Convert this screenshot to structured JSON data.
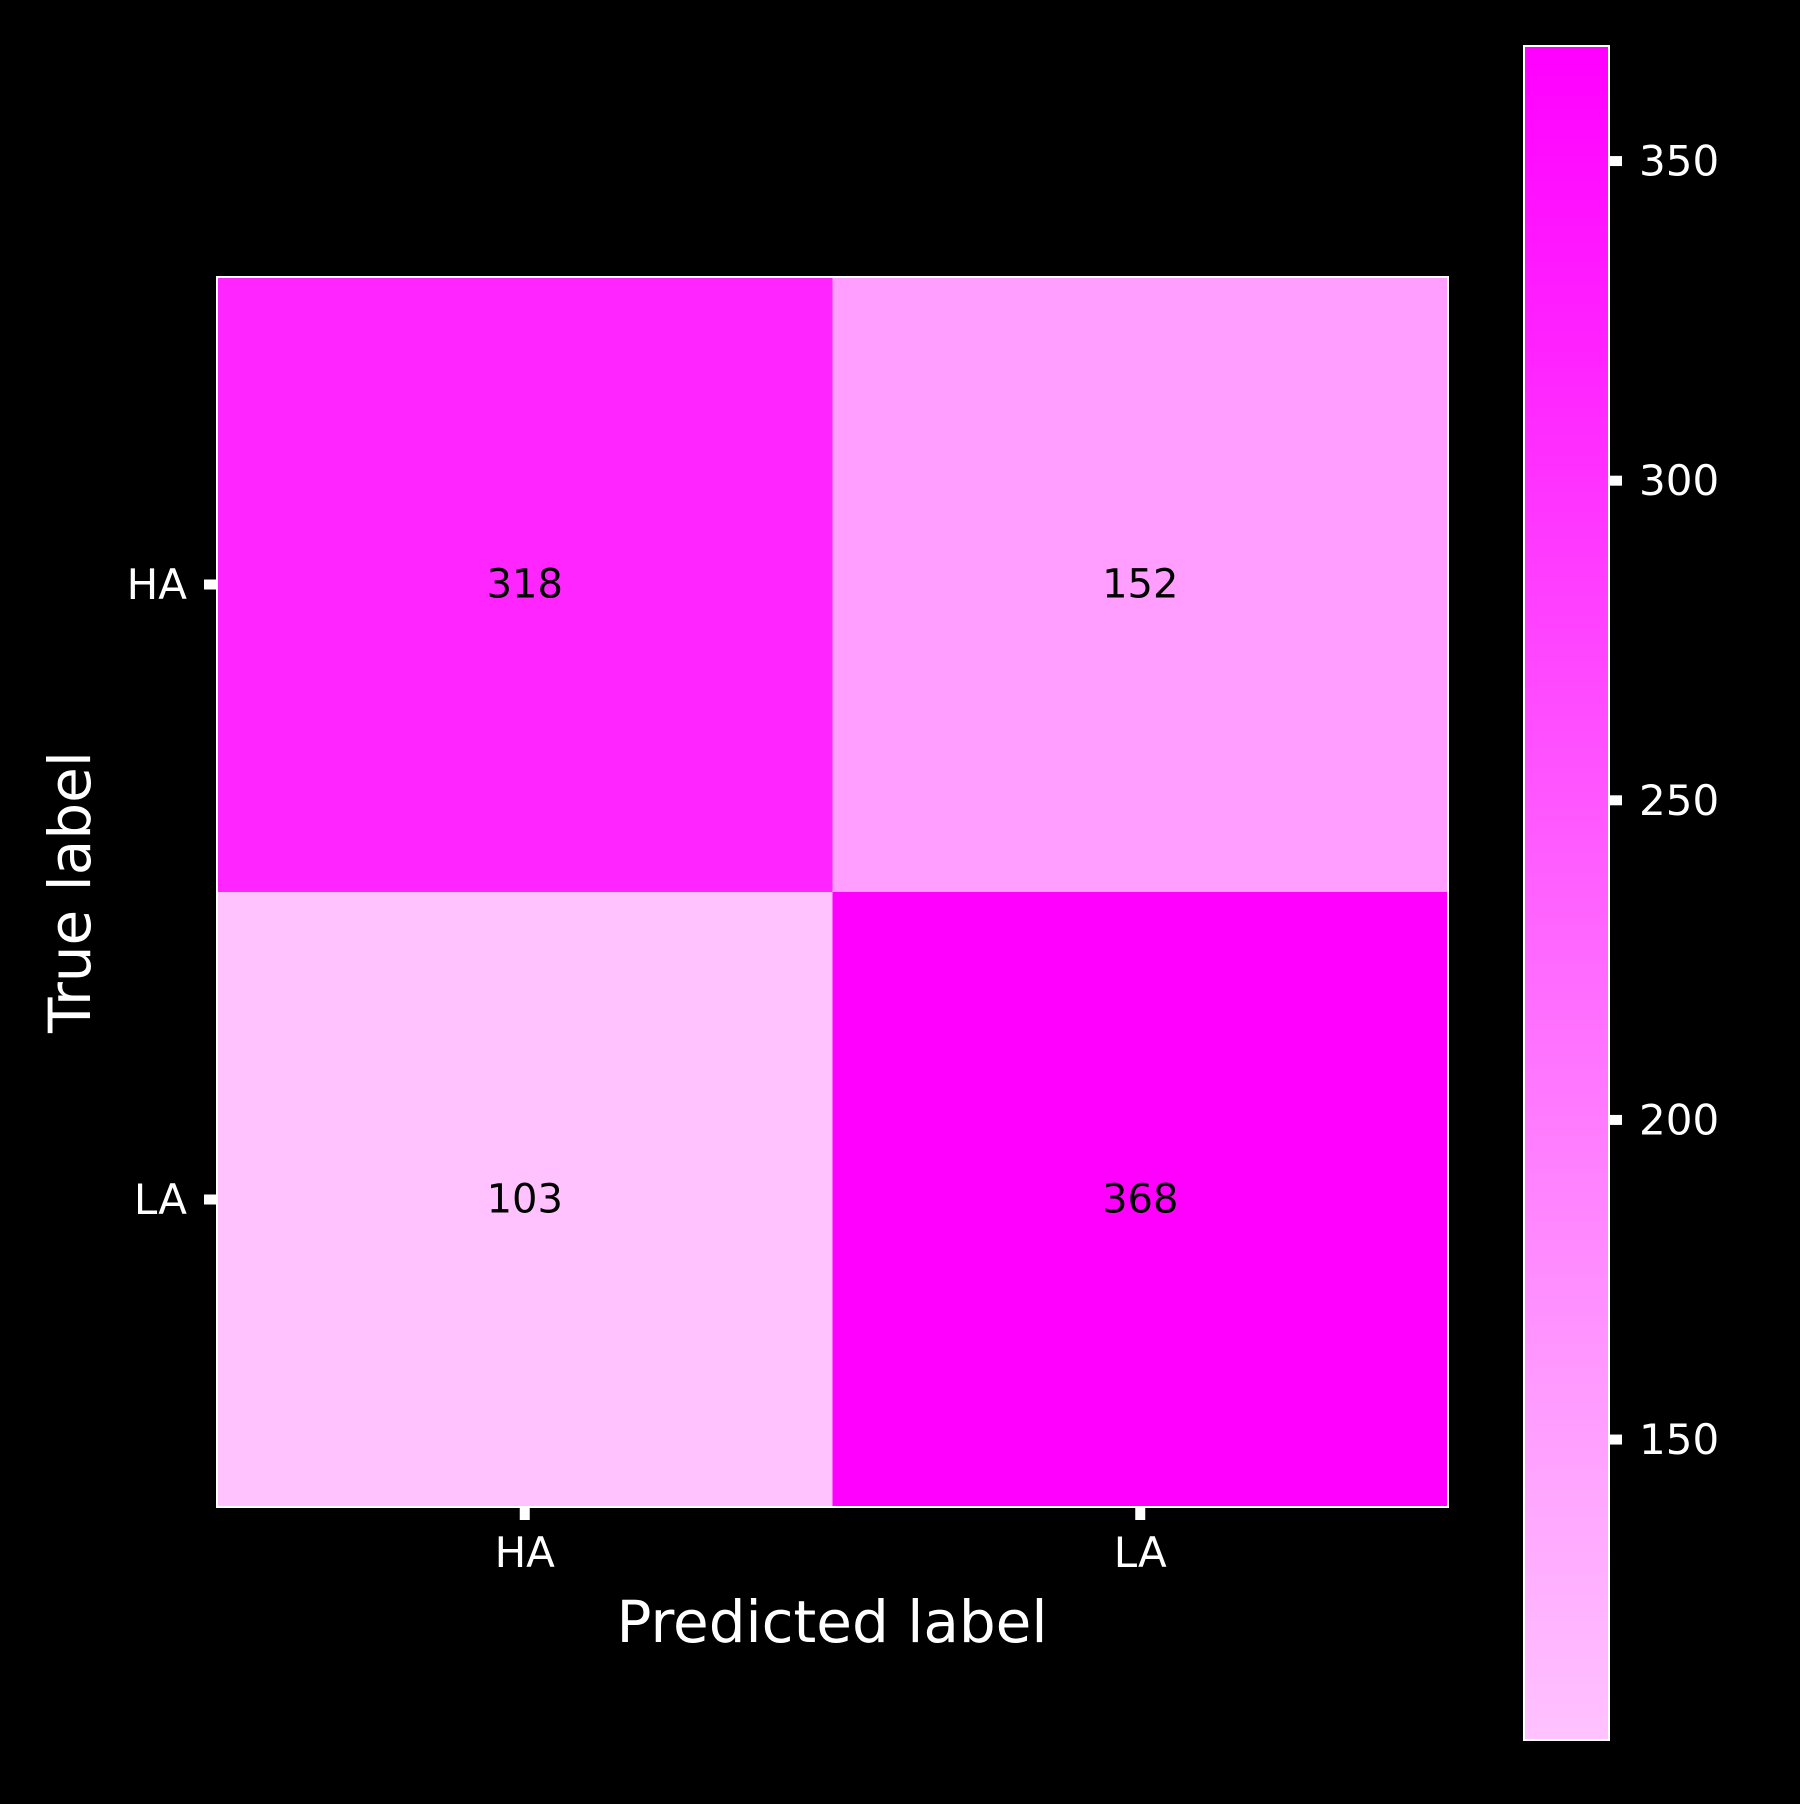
{
  "chart_data": {
    "type": "heatmap",
    "title": "",
    "xlabel": "Predicted label",
    "ylabel": "True label",
    "x_categories": [
      "HA",
      "LA"
    ],
    "y_categories": [
      "HA",
      "LA"
    ],
    "matrix": [
      [
        318,
        152
      ],
      [
        103,
        368
      ]
    ],
    "colorbar": {
      "ticks": [
        150,
        200,
        250,
        300,
        350
      ],
      "range": [
        103,
        368
      ],
      "color_low": "#ffc2ff",
      "color_high": "#ff00ff"
    },
    "background": "#000000",
    "text_color": "#ffffff",
    "cell_text_color": "#000000"
  }
}
